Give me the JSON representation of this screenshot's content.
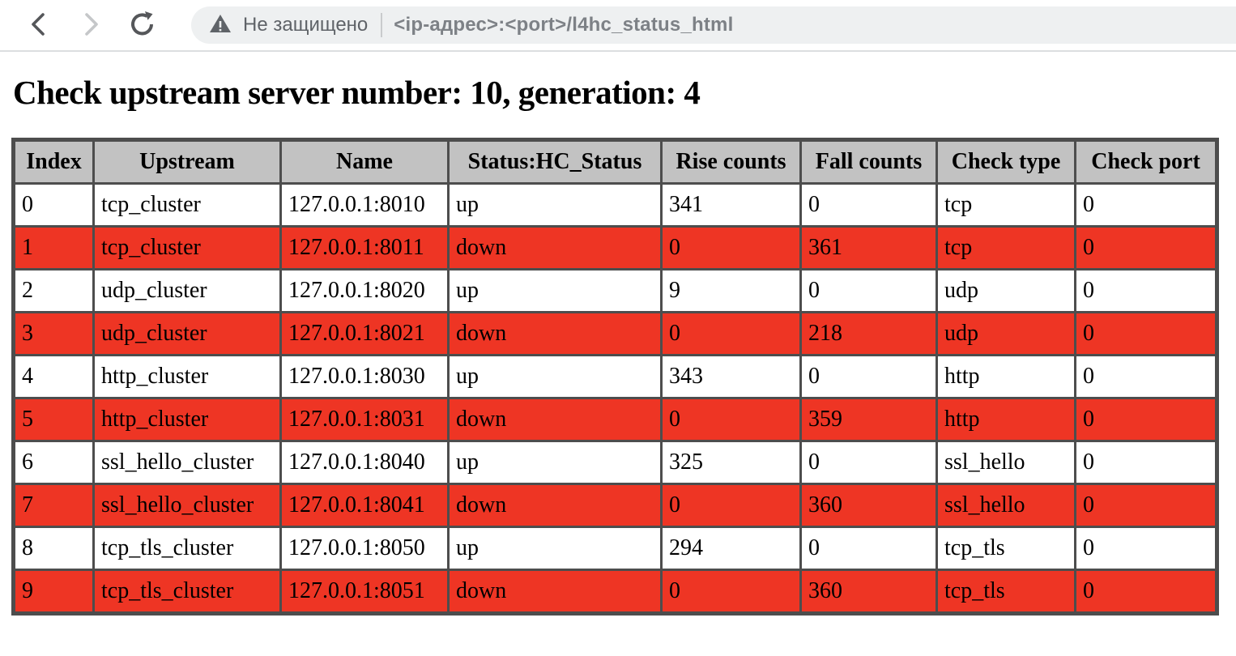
{
  "browser": {
    "security_label": "Не защищено",
    "url": "<ip-адрес>:<port>/l4hc_status_html"
  },
  "page": {
    "heading": "Check upstream server number: 10, generation: 4"
  },
  "table": {
    "headers": [
      "Index",
      "Upstream",
      "Name",
      "Status:HC_Status",
      "Rise counts",
      "Fall counts",
      "Check type",
      "Check port"
    ],
    "rows": [
      {
        "index": "0",
        "upstream": "tcp_cluster",
        "name": "127.0.0.1:8010",
        "status": "up",
        "rise": "341",
        "fall": "0",
        "check_type": "tcp",
        "check_port": "0"
      },
      {
        "index": "1",
        "upstream": "tcp_cluster",
        "name": "127.0.0.1:8011",
        "status": "down",
        "rise": "0",
        "fall": "361",
        "check_type": "tcp",
        "check_port": "0"
      },
      {
        "index": "2",
        "upstream": "udp_cluster",
        "name": "127.0.0.1:8020",
        "status": "up",
        "rise": "9",
        "fall": "0",
        "check_type": "udp",
        "check_port": "0"
      },
      {
        "index": "3",
        "upstream": "udp_cluster",
        "name": "127.0.0.1:8021",
        "status": "down",
        "rise": "0",
        "fall": "218",
        "check_type": "udp",
        "check_port": "0"
      },
      {
        "index": "4",
        "upstream": "http_cluster",
        "name": "127.0.0.1:8030",
        "status": "up",
        "rise": "343",
        "fall": "0",
        "check_type": "http",
        "check_port": "0"
      },
      {
        "index": "5",
        "upstream": "http_cluster",
        "name": "127.0.0.1:8031",
        "status": "down",
        "rise": "0",
        "fall": "359",
        "check_type": "http",
        "check_port": "0"
      },
      {
        "index": "6",
        "upstream": "ssl_hello_cluster",
        "name": "127.0.0.1:8040",
        "status": "up",
        "rise": "325",
        "fall": "0",
        "check_type": "ssl_hello",
        "check_port": "0"
      },
      {
        "index": "7",
        "upstream": "ssl_hello_cluster",
        "name": "127.0.0.1:8041",
        "status": "down",
        "rise": "0",
        "fall": "360",
        "check_type": "ssl_hello",
        "check_port": "0"
      },
      {
        "index": "8",
        "upstream": "tcp_tls_cluster",
        "name": "127.0.0.1:8050",
        "status": "up",
        "rise": "294",
        "fall": "0",
        "check_type": "tcp_tls",
        "check_port": "0"
      },
      {
        "index": "9",
        "upstream": "tcp_tls_cluster",
        "name": "127.0.0.1:8051",
        "status": "down",
        "rise": "0",
        "fall": "360",
        "check_type": "tcp_tls",
        "check_port": "0"
      }
    ]
  },
  "colors": {
    "down_row_bg": "#ee3524",
    "header_bg": "#c2c2c2",
    "grid": "#4d4d4d",
    "chrome_icon": "#55575a",
    "chrome_icon_disabled": "#c5c7c9",
    "security_text": "#5f6368"
  }
}
